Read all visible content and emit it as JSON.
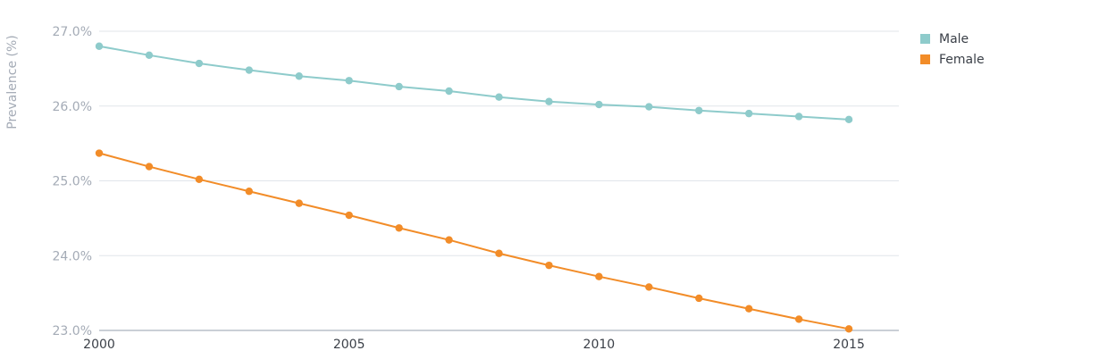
{
  "chart_data": {
    "type": "line",
    "title": "",
    "xlabel": "",
    "ylabel": "Prevalence (%)",
    "x": [
      2000,
      2001,
      2002,
      2003,
      2004,
      2005,
      2006,
      2007,
      2008,
      2009,
      2010,
      2011,
      2012,
      2013,
      2014,
      2015
    ],
    "xlim": [
      2000,
      2016
    ],
    "ylim": [
      23.0,
      27.0
    ],
    "x_ticks": [
      {
        "value": 2000,
        "label": "2000"
      },
      {
        "value": 2005,
        "label": "2005"
      },
      {
        "value": 2010,
        "label": "2010"
      },
      {
        "value": 2015,
        "label": "2015"
      }
    ],
    "y_ticks": [
      {
        "value": 27.0,
        "label": "27.0%"
      },
      {
        "value": 26.0,
        "label": "26.0%"
      },
      {
        "value": 25.0,
        "label": "25.0%"
      },
      {
        "value": 24.0,
        "label": "24.0%"
      },
      {
        "value": 23.0,
        "label": "23.0%"
      }
    ],
    "grid": true,
    "legend_position": "top-right",
    "series": [
      {
        "name": "Male",
        "color": "#8ecbcb",
        "values": [
          26.8,
          26.68,
          26.57,
          26.48,
          26.4,
          26.34,
          26.26,
          26.2,
          26.12,
          26.06,
          26.02,
          25.99,
          25.94,
          25.9,
          25.86,
          25.82
        ]
      },
      {
        "name": "Female",
        "color": "#f28c28",
        "values": [
          25.37,
          25.19,
          25.02,
          24.86,
          24.7,
          24.54,
          24.37,
          24.21,
          24.03,
          23.87,
          23.72,
          23.58,
          23.43,
          23.29,
          23.15,
          23.02
        ]
      }
    ]
  }
}
